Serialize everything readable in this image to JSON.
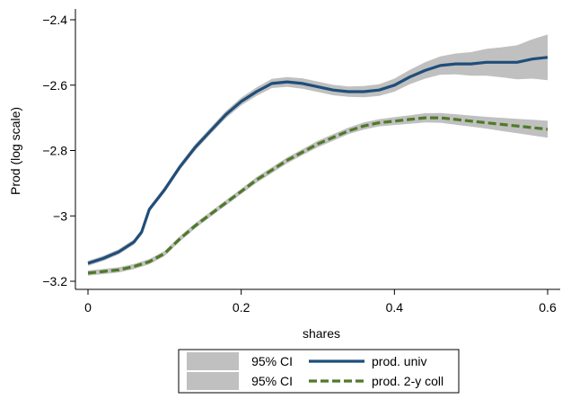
{
  "chart_data": {
    "type": "line",
    "xlabel": "shares",
    "ylabel": "Prod (log scale)",
    "xlim": [
      0,
      0.6
    ],
    "ylim": [
      -3.2,
      -2.4
    ],
    "xticks": [
      0,
      0.2,
      0.4,
      0.6
    ],
    "xtick_labels": [
      "0",
      "0.2",
      "0.4",
      "0.6"
    ],
    "yticks": [
      -3.2,
      -3.0,
      -2.8,
      -2.6,
      -2.4
    ],
    "ytick_labels": [
      "−3.2",
      "−3",
      "−2.8",
      "−2.6",
      "−2.4"
    ],
    "grid": false,
    "legend_position": "bottom",
    "legend": [
      {
        "label": "95% CI",
        "kind": "band"
      },
      {
        "label": "prod. univ",
        "kind": "line",
        "series": 0
      },
      {
        "label": "95% CI",
        "kind": "band"
      },
      {
        "label": "prod. 2-y coll",
        "kind": "line",
        "series": 1
      }
    ],
    "series": [
      {
        "name": "prod. univ",
        "color": "#1f4e79",
        "dash": "solid",
        "band_color": "#c0c0c0",
        "x": [
          0,
          0.02,
          0.04,
          0.06,
          0.07,
          0.08,
          0.09,
          0.1,
          0.12,
          0.14,
          0.16,
          0.18,
          0.2,
          0.22,
          0.24,
          0.26,
          0.28,
          0.3,
          0.32,
          0.34,
          0.36,
          0.38,
          0.4,
          0.42,
          0.44,
          0.46,
          0.48,
          0.5,
          0.52,
          0.54,
          0.56,
          0.58,
          0.6
        ],
        "y": [
          -3.145,
          -3.13,
          -3.11,
          -3.08,
          -3.05,
          -2.98,
          -2.95,
          -2.92,
          -2.85,
          -2.79,
          -2.74,
          -2.69,
          -2.65,
          -2.62,
          -2.595,
          -2.59,
          -2.595,
          -2.605,
          -2.615,
          -2.62,
          -2.62,
          -2.615,
          -2.6,
          -2.575,
          -2.555,
          -2.54,
          -2.535,
          -2.535,
          -2.53,
          -2.53,
          -2.53,
          -2.52,
          -2.515
        ],
        "ci_half": [
          0.008,
          0.008,
          0.008,
          0.008,
          0.008,
          0.008,
          0.008,
          0.009,
          0.009,
          0.01,
          0.01,
          0.011,
          0.012,
          0.013,
          0.014,
          0.015,
          0.016,
          0.016,
          0.016,
          0.016,
          0.017,
          0.018,
          0.02,
          0.022,
          0.025,
          0.028,
          0.032,
          0.036,
          0.041,
          0.046,
          0.052,
          0.06,
          0.07
        ]
      },
      {
        "name": "prod. 2-y coll",
        "color": "#4f7a28",
        "dash": "dashed",
        "band_color": "#c0c0c0",
        "x": [
          0,
          0.02,
          0.04,
          0.06,
          0.08,
          0.1,
          0.12,
          0.14,
          0.16,
          0.18,
          0.2,
          0.22,
          0.24,
          0.26,
          0.28,
          0.3,
          0.32,
          0.34,
          0.36,
          0.38,
          0.4,
          0.42,
          0.44,
          0.46,
          0.48,
          0.5,
          0.52,
          0.54,
          0.56,
          0.58,
          0.6
        ],
        "y": [
          -3.175,
          -3.17,
          -3.165,
          -3.155,
          -3.14,
          -3.115,
          -3.07,
          -3.03,
          -2.995,
          -2.96,
          -2.925,
          -2.89,
          -2.86,
          -2.83,
          -2.805,
          -2.78,
          -2.76,
          -2.74,
          -2.725,
          -2.715,
          -2.71,
          -2.705,
          -2.7,
          -2.7,
          -2.705,
          -2.71,
          -2.715,
          -2.72,
          -2.725,
          -2.73,
          -2.735
        ],
        "ci_half": [
          0.008,
          0.008,
          0.008,
          0.008,
          0.008,
          0.008,
          0.008,
          0.008,
          0.008,
          0.008,
          0.008,
          0.009,
          0.009,
          0.009,
          0.009,
          0.01,
          0.01,
          0.01,
          0.011,
          0.011,
          0.012,
          0.013,
          0.014,
          0.015,
          0.016,
          0.017,
          0.018,
          0.02,
          0.022,
          0.024,
          0.026
        ]
      }
    ]
  }
}
